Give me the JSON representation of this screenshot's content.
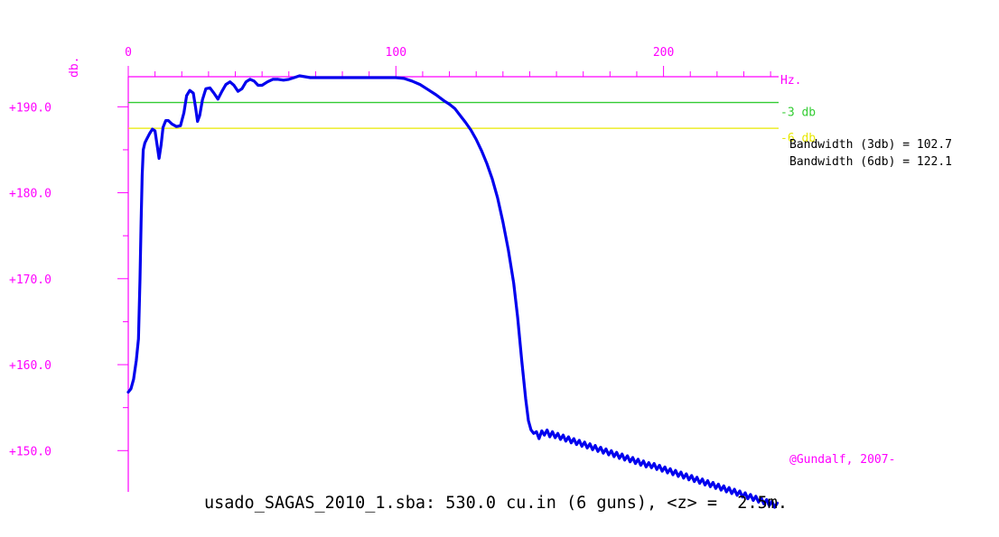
{
  "chart_data": {
    "type": "line",
    "x_axis": {
      "unit_label": "Hz.",
      "range": [
        0,
        243
      ],
      "tick_labels": [
        "0",
        "100",
        "200"
      ],
      "tick_values": [
        0,
        100,
        200
      ],
      "minor_tick_step": 10
    },
    "y_axis": {
      "unit_label": "db.",
      "range": [
        145.2,
        193.5
      ],
      "tick_labels": [
        "+190.0",
        "+180.0",
        "+170.0",
        "+160.0",
        "+150.0"
      ],
      "tick_values": [
        190,
        180,
        170,
        160,
        150
      ],
      "minor_tick_step": 5
    },
    "reference_lines": [
      {
        "label": "-3 db",
        "y": 190.5,
        "color": "#33cc33"
      },
      {
        "label": "-6 db",
        "y": 187.5,
        "color": "#e8e800"
      }
    ],
    "bandwidth_text": [
      "Bandwidth (3db) = 102.7",
      "Bandwidth (6db) = 122.1"
    ],
    "credit": "@Gundalf, 2007-",
    "caption": "usado_SAGAS_2010_1.sba: 530.0 cu.in (6 guns), <z> =  2.5m.",
    "colors": {
      "axis": "#ff00ff",
      "curve": "#0000ee",
      "text": "#000000"
    },
    "series": [
      {
        "color": "#0000ee",
        "points": [
          [
            0,
            156.8
          ],
          [
            1,
            157.2
          ],
          [
            2,
            158.3
          ],
          [
            3,
            160.5
          ],
          [
            3.8,
            163
          ],
          [
            4.4,
            170
          ],
          [
            4.8,
            176.5
          ],
          [
            5.2,
            182
          ],
          [
            5.6,
            185
          ],
          [
            6.2,
            185.8
          ],
          [
            7,
            186.3
          ],
          [
            8,
            186.9
          ],
          [
            9,
            187.4
          ],
          [
            10,
            187.2
          ],
          [
            10.8,
            185.5
          ],
          [
            11.5,
            184
          ],
          [
            12.3,
            185.6
          ],
          [
            13,
            187.6
          ],
          [
            14,
            188.4
          ],
          [
            15,
            188.4
          ],
          [
            16.3,
            188
          ],
          [
            18,
            187.7
          ],
          [
            19.5,
            187.8
          ],
          [
            20.8,
            189.3
          ],
          [
            21.8,
            191.3
          ],
          [
            23,
            191.9
          ],
          [
            24.3,
            191.6
          ],
          [
            25.2,
            189.8
          ],
          [
            25.9,
            188.3
          ],
          [
            26.7,
            189
          ],
          [
            27.7,
            190.8
          ],
          [
            29,
            192.1
          ],
          [
            30.5,
            192.2
          ],
          [
            32,
            191.6
          ],
          [
            33.5,
            190.9
          ],
          [
            35,
            191.8
          ],
          [
            36.5,
            192.6
          ],
          [
            38,
            192.9
          ],
          [
            39.5,
            192.5
          ],
          [
            41,
            191.8
          ],
          [
            42.5,
            192.1
          ],
          [
            44,
            192.9
          ],
          [
            45.5,
            193.2
          ],
          [
            47,
            193
          ],
          [
            48.5,
            192.5
          ],
          [
            50,
            192.5
          ],
          [
            52,
            192.9
          ],
          [
            54,
            193.2
          ],
          [
            56,
            193.2
          ],
          [
            58,
            193.1
          ],
          [
            60,
            193.2
          ],
          [
            62,
            193.4
          ],
          [
            64,
            193.6
          ],
          [
            66,
            193.5
          ],
          [
            68,
            193.4
          ],
          [
            70,
            193.4
          ],
          [
            75,
            193.4
          ],
          [
            80,
            193.4
          ],
          [
            85,
            193.4
          ],
          [
            90,
            193.4
          ],
          [
            95,
            193.4
          ],
          [
            100,
            193.4
          ],
          [
            103,
            193.3
          ],
          [
            106,
            193
          ],
          [
            109,
            192.6
          ],
          [
            112,
            192
          ],
          [
            115,
            191.4
          ],
          [
            118,
            190.7
          ],
          [
            120,
            190.3
          ],
          [
            122,
            189.8
          ],
          [
            124,
            189
          ],
          [
            126,
            188.2
          ],
          [
            128,
            187.3
          ],
          [
            130,
            186.2
          ],
          [
            132,
            184.9
          ],
          [
            134,
            183.4
          ],
          [
            136,
            181.6
          ],
          [
            138,
            179.4
          ],
          [
            140,
            176.6
          ],
          [
            142,
            173.4
          ],
          [
            144,
            169.5
          ],
          [
            145.5,
            165.5
          ],
          [
            147,
            160.5
          ],
          [
            148.5,
            156
          ],
          [
            149.5,
            153.5
          ],
          [
            150.5,
            152.4
          ],
          [
            151.5,
            152
          ],
          [
            152.5,
            152.2
          ],
          [
            153.5,
            151.4
          ],
          [
            154.5,
            152.3
          ],
          [
            155.5,
            151.8
          ],
          [
            156.5,
            152.4
          ],
          [
            157.5,
            151.6
          ],
          [
            158.5,
            152.2
          ],
          [
            159.5,
            151.5
          ],
          [
            160.5,
            152
          ],
          [
            161.5,
            151.3
          ],
          [
            162.5,
            151.8
          ],
          [
            163.5,
            151.1
          ],
          [
            164.5,
            151.6
          ],
          [
            165.5,
            150.9
          ],
          [
            166.5,
            151.4
          ],
          [
            167.5,
            150.7
          ],
          [
            168.5,
            151.2
          ],
          [
            169.5,
            150.5
          ],
          [
            170.5,
            151
          ],
          [
            171.5,
            150.3
          ],
          [
            172.5,
            150.8
          ],
          [
            173.5,
            150.1
          ],
          [
            174.5,
            150.6
          ],
          [
            175.5,
            149.9
          ],
          [
            176.5,
            150.4
          ],
          [
            177.5,
            149.7
          ],
          [
            178.5,
            150.2
          ],
          [
            179.5,
            149.5
          ],
          [
            180.5,
            150
          ],
          [
            181.5,
            149.3
          ],
          [
            182.5,
            149.8
          ],
          [
            183.5,
            149.1
          ],
          [
            184.5,
            149.6
          ],
          [
            185.5,
            148.9
          ],
          [
            186.5,
            149.4
          ],
          [
            187.5,
            148.7
          ],
          [
            188.5,
            149.2
          ],
          [
            189.5,
            148.5
          ],
          [
            190.5,
            149
          ],
          [
            191.5,
            148.3
          ],
          [
            192.5,
            148.8
          ],
          [
            193.5,
            148.1
          ],
          [
            194.5,
            148.6
          ],
          [
            195.5,
            148
          ],
          [
            196.5,
            148.5
          ],
          [
            197.5,
            147.8
          ],
          [
            198.5,
            148.3
          ],
          [
            199.5,
            147.6
          ],
          [
            200.5,
            148.1
          ],
          [
            201.5,
            147.4
          ],
          [
            202.5,
            147.9
          ],
          [
            203.5,
            147.2
          ],
          [
            204.5,
            147.7
          ],
          [
            205.5,
            147
          ],
          [
            206.5,
            147.5
          ],
          [
            207.5,
            146.8
          ],
          [
            208.5,
            147.3
          ],
          [
            209.5,
            146.6
          ],
          [
            210.5,
            147.1
          ],
          [
            211.5,
            146.4
          ],
          [
            212.5,
            146.9
          ],
          [
            213.5,
            146.2
          ],
          [
            214.5,
            146.7
          ],
          [
            215.5,
            146
          ],
          [
            216.5,
            146.5
          ],
          [
            217.5,
            145.8
          ],
          [
            218.5,
            146.3
          ],
          [
            219.5,
            145.6
          ],
          [
            220.5,
            146.1
          ],
          [
            221.5,
            145.4
          ],
          [
            222.5,
            145.9
          ],
          [
            223.5,
            145.2
          ],
          [
            224.5,
            145.7
          ],
          [
            225.5,
            145
          ],
          [
            226.5,
            145.5
          ],
          [
            227.5,
            144.8
          ],
          [
            228.5,
            145.3
          ],
          [
            229.5,
            144.6
          ],
          [
            230.5,
            145.1
          ],
          [
            231.5,
            144.4
          ],
          [
            232.5,
            144.9
          ],
          [
            233.5,
            144.2
          ],
          [
            234.5,
            144.7
          ],
          [
            235.5,
            144
          ],
          [
            236.5,
            144.5
          ],
          [
            237.5,
            143.8
          ],
          [
            238.5,
            144.3
          ],
          [
            239.5,
            143.6
          ],
          [
            240.5,
            144.1
          ],
          [
            241.5,
            143.4
          ],
          [
            242.5,
            143.9
          ]
        ]
      }
    ]
  }
}
